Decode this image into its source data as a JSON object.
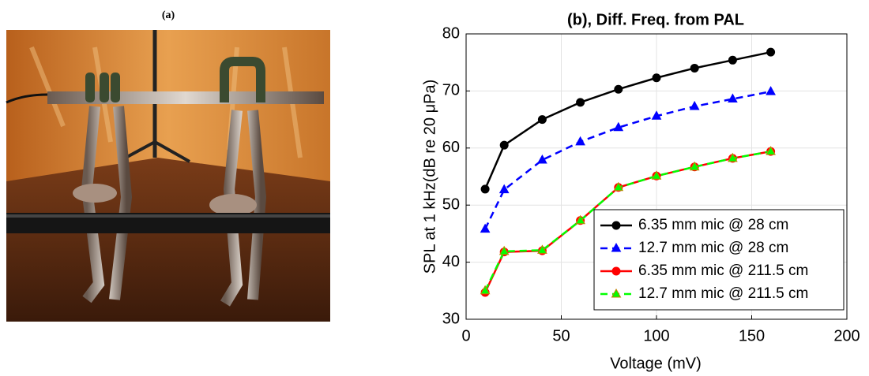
{
  "panel_a": {
    "label": "(a)"
  },
  "chart_data": {
    "type": "line",
    "title": "(b), Diff. Freq. from PAL",
    "xlabel": "Voltage (mV)",
    "ylabel": "SPL at 1 kHz(dB re 20 μPa)",
    "x": [
      10,
      20,
      40,
      60,
      80,
      100,
      120,
      140,
      160
    ],
    "series": [
      {
        "name": "6.35 mm mic @ 28 cm",
        "color": "#000000",
        "line_style": "solid",
        "marker": "circle",
        "values": [
          52.8,
          60.5,
          65,
          68,
          70.3,
          72.3,
          74,
          75.4,
          76.8
        ]
      },
      {
        "name": "12.7 mm mic @ 28 cm",
        "color": "#0000ff",
        "line_style": "dashed",
        "marker": "triangle",
        "values": [
          45.8,
          52.7,
          57.9,
          61.1,
          63.6,
          65.6,
          67.3,
          68.6,
          69.9
        ]
      },
      {
        "name": "6.35 mm mic @ 211.5 cm",
        "color": "#ff0000",
        "line_style": "solid",
        "marker": "circle",
        "values": [
          34.7,
          41.8,
          42,
          47.3,
          53.1,
          55.1,
          56.7,
          58.2,
          59.4
        ]
      },
      {
        "name": "12.7 mm mic @ 211.5 cm",
        "color": "#00ff00",
        "line_style": "dashed",
        "marker": "triangle",
        "values": [
          35,
          41.9,
          42.1,
          47.3,
          53.1,
          55.1,
          56.7,
          58.2,
          59.4
        ]
      }
    ],
    "xlim": [
      0,
      200
    ],
    "xticks": [
      0,
      50,
      100,
      150,
      200
    ],
    "ylim": [
      30,
      80
    ],
    "yticks": [
      30,
      40,
      50,
      60,
      70,
      80
    ],
    "grid": true,
    "legend": "lower right"
  }
}
